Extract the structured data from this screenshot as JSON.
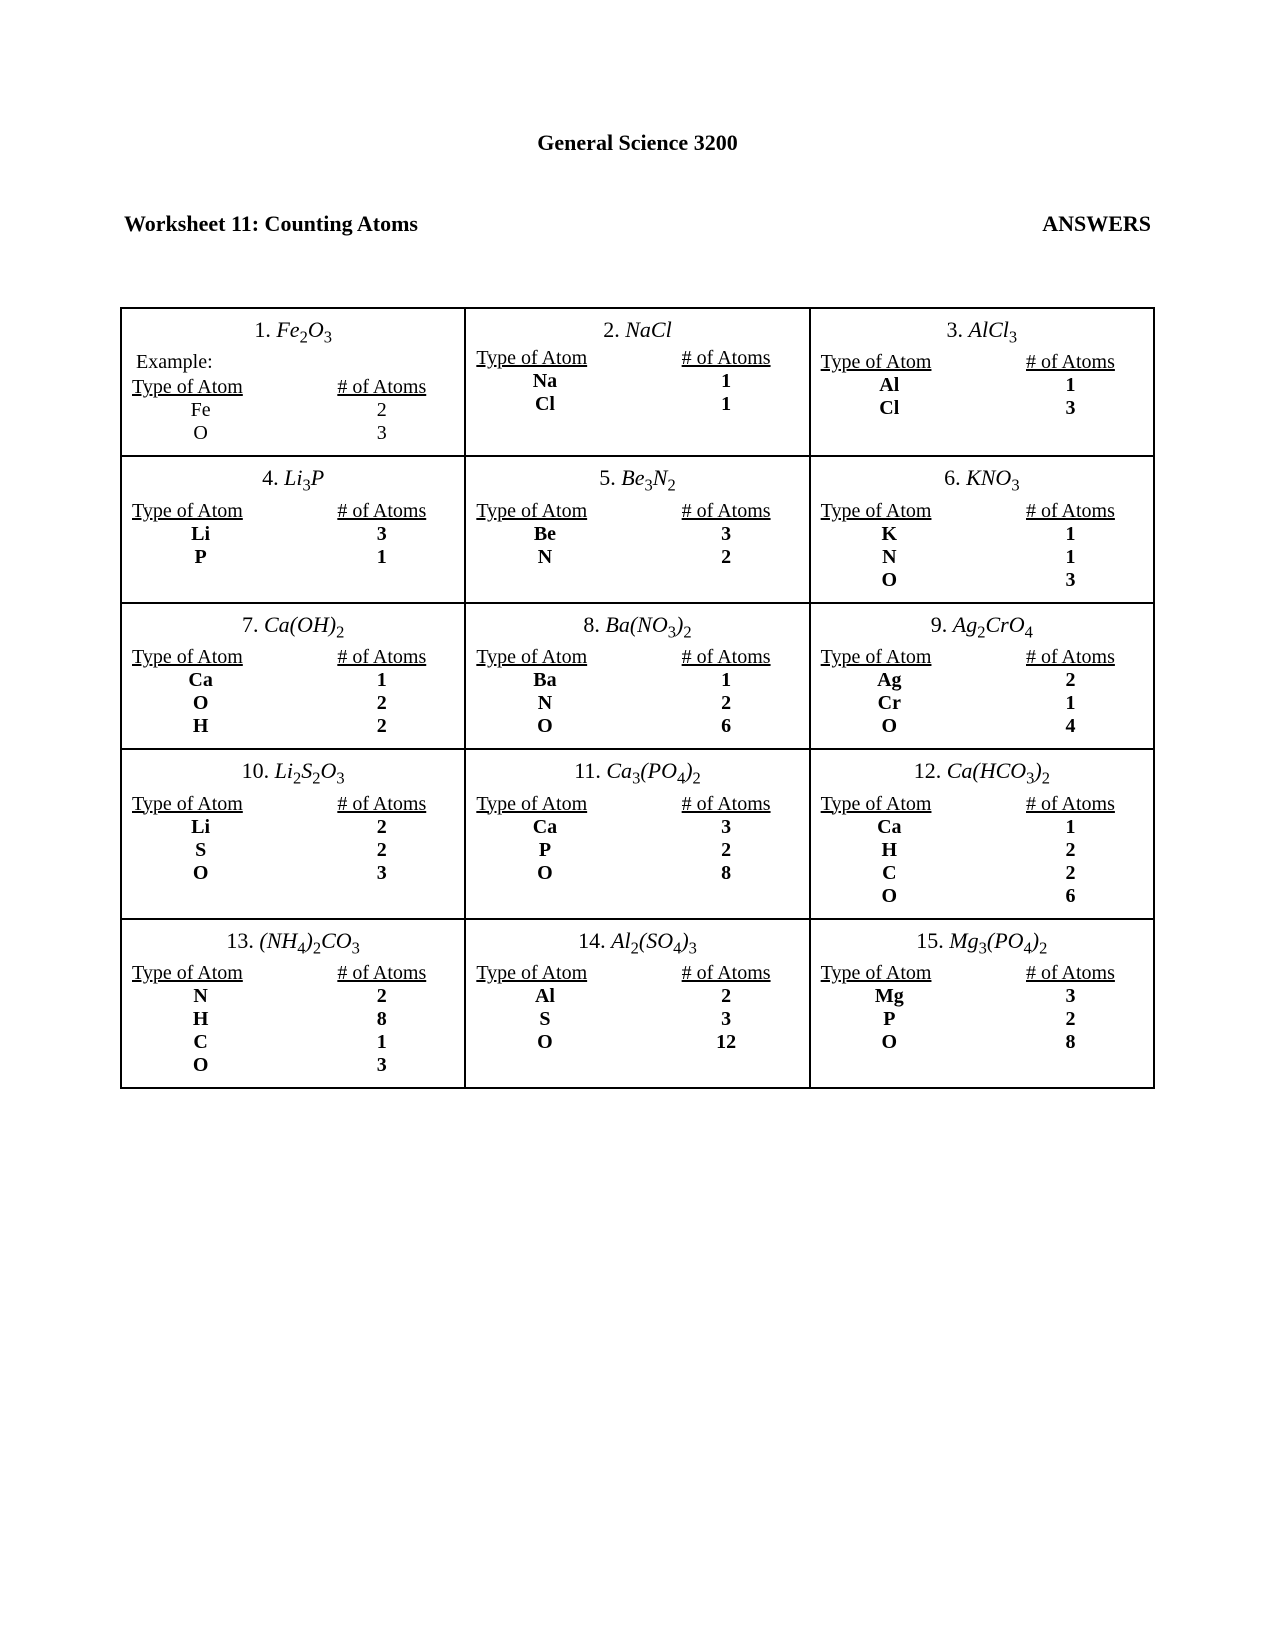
{
  "course_title": "General Science 3200",
  "worksheet_title": "Worksheet 11: Counting Atoms",
  "answers_label": "ANSWERS",
  "col_atom": "Type of Atom",
  "col_count": "# of Atoms",
  "cells": [
    {
      "num": "1.",
      "formula_html": "Fe<sub>2</sub>O<sub>3</sub>",
      "note": "Example:",
      "bold": false,
      "atoms": [
        [
          "Fe",
          "2"
        ],
        [
          "O",
          "3"
        ]
      ]
    },
    {
      "num": "2.",
      "formula_html": "NaCl",
      "bold": true,
      "atoms": [
        [
          "Na",
          "1"
        ],
        [
          "Cl",
          "1"
        ]
      ]
    },
    {
      "num": "3.",
      "formula_html": "AlCl<sub>3</sub>",
      "bold": true,
      "atoms": [
        [
          "Al",
          "1"
        ],
        [
          "Cl",
          "3"
        ]
      ]
    },
    {
      "num": "4.",
      "formula_html": "Li<sub>3</sub>P",
      "bold": true,
      "atoms": [
        [
          "Li",
          "3"
        ],
        [
          "P",
          "1"
        ]
      ]
    },
    {
      "num": "5.",
      "formula_html": "Be<sub>3</sub>N<sub>2</sub>",
      "bold": true,
      "atoms": [
        [
          "Be",
          "3"
        ],
        [
          "N",
          "2"
        ]
      ]
    },
    {
      "num": "6.",
      "formula_html": "KNO<sub>3</sub>",
      "bold": true,
      "atoms": [
        [
          "K",
          "1"
        ],
        [
          "N",
          "1"
        ],
        [
          "O",
          "3"
        ]
      ]
    },
    {
      "num": "7.",
      "formula_html": "Ca(OH)<sub>2</sub>",
      "bold": true,
      "atoms": [
        [
          "Ca",
          "1"
        ],
        [
          "O",
          "2"
        ],
        [
          "H",
          "2"
        ]
      ]
    },
    {
      "num": "8.",
      "formula_html": "Ba(NO<sub>3</sub>)<sub>2</sub>",
      "bold": true,
      "atoms": [
        [
          "Ba",
          "1"
        ],
        [
          "N",
          "2"
        ],
        [
          "O",
          "6"
        ]
      ]
    },
    {
      "num": "9.",
      "formula_html": "Ag<sub>2</sub>CrO<sub>4</sub>",
      "bold": true,
      "atoms": [
        [
          "Ag",
          "2"
        ],
        [
          "Cr",
          "1"
        ],
        [
          "O",
          "4"
        ]
      ]
    },
    {
      "num": "10.",
      "formula_html": "Li<sub>2</sub>S<sub>2</sub>O<sub>3</sub>",
      "bold": true,
      "atoms": [
        [
          "Li",
          "2"
        ],
        [
          "S",
          "2"
        ],
        [
          "O",
          "3"
        ]
      ]
    },
    {
      "num": "11.",
      "formula_html": "Ca<sub>3</sub>(PO<sub>4</sub>)<sub>2</sub>",
      "bold": true,
      "atoms": [
        [
          "Ca",
          "3"
        ],
        [
          "P",
          "2"
        ],
        [
          "O",
          "8"
        ]
      ]
    },
    {
      "num": "12.",
      "formula_html": "Ca(HCO<sub>3</sub>)<sub>2</sub>",
      "bold": true,
      "atoms": [
        [
          "Ca",
          "1"
        ],
        [
          "H",
          "2"
        ],
        [
          "C",
          "2"
        ],
        [
          "O",
          "6"
        ]
      ]
    },
    {
      "num": "13.",
      "formula_html": "(NH<sub>4</sub>)<sub>2</sub>CO<sub>3</sub>",
      "bold": true,
      "atoms": [
        [
          "N",
          "2"
        ],
        [
          "H",
          "8"
        ],
        [
          "C",
          "1"
        ],
        [
          "O",
          "3"
        ]
      ]
    },
    {
      "num": "14.",
      "formula_html": "Al<sub>2</sub>(SO<sub>4</sub>)<sub>3</sub>",
      "bold": true,
      "atoms": [
        [
          "Al",
          "2"
        ],
        [
          "S",
          "3"
        ],
        [
          "O",
          "12"
        ]
      ]
    },
    {
      "num": "15.",
      "formula_html": "Mg<sub>3</sub>(PO<sub>4</sub>)<sub>2</sub>",
      "bold": true,
      "atoms": [
        [
          "Mg",
          "3"
        ],
        [
          "P",
          "2"
        ],
        [
          "O",
          "8"
        ]
      ]
    }
  ]
}
